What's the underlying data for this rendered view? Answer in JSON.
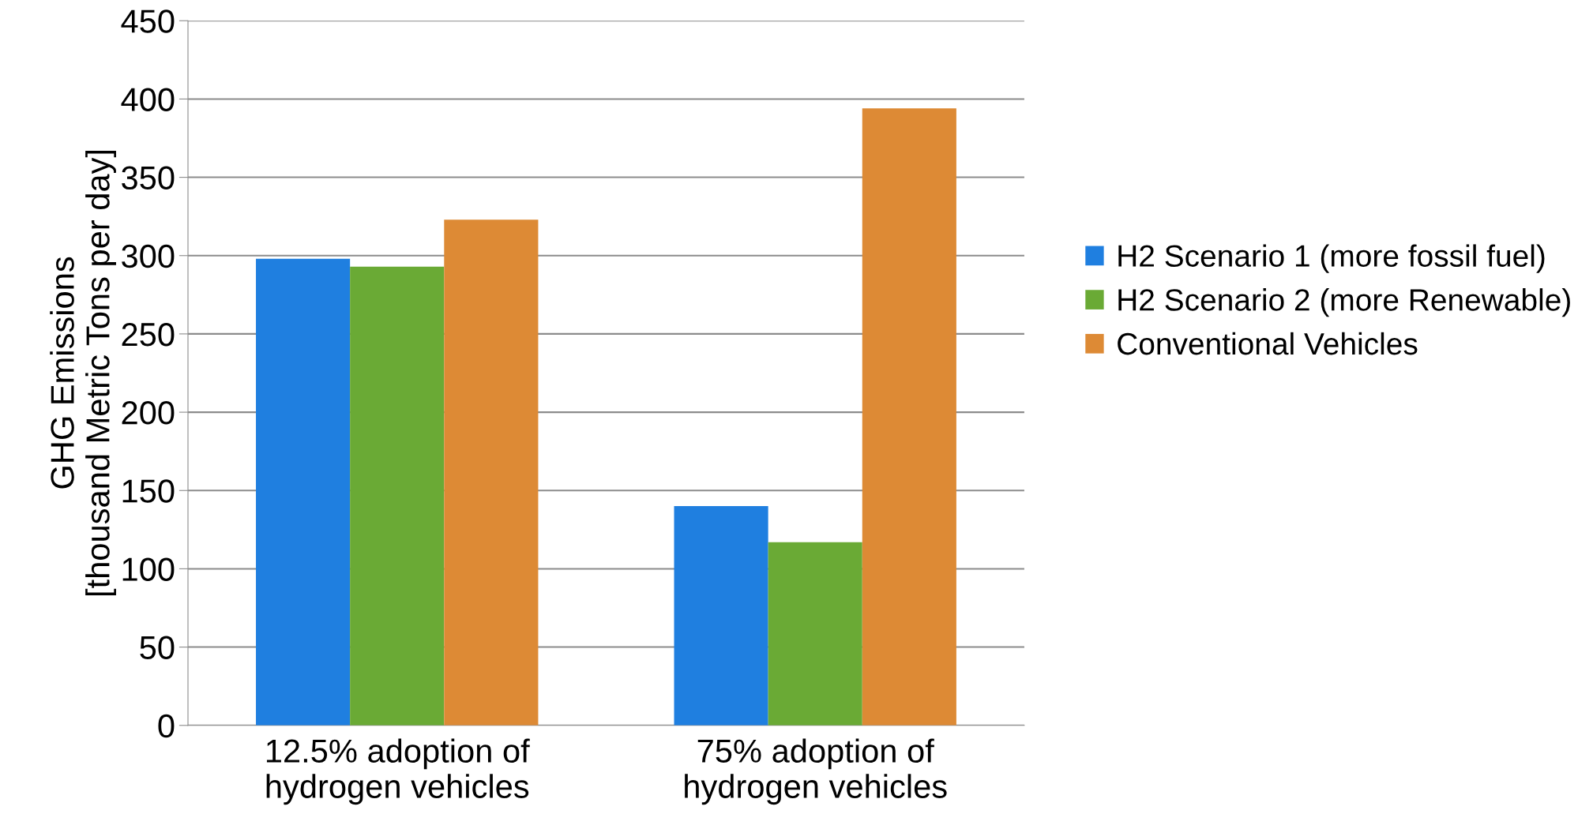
{
  "chart_data": {
    "type": "bar",
    "categories": [
      "12.5% adoption of\nhydrogen vehicles",
      "75% adoption of\nhydrogen vehicles"
    ],
    "series": [
      {
        "name": "H2 Scenario 1 (more fossil fuel)",
        "color": "#1f7fe0",
        "values": [
          298,
          140
        ]
      },
      {
        "name": "H2 Scenario 2 (more Renewable)",
        "color": "#6aaa35",
        "values": [
          293,
          117
        ]
      },
      {
        "name": "Conventional Vehicles",
        "color": "#dd8a35",
        "values": [
          323,
          394
        ]
      }
    ],
    "ylabel": "GHG Emissions\n[thousand Metric Tons per day]",
    "ylim": [
      0,
      450
    ],
    "yticks": [
      0,
      50,
      100,
      150,
      200,
      250,
      300,
      350,
      400,
      450
    ],
    "grid": "y",
    "legend": "right"
  }
}
